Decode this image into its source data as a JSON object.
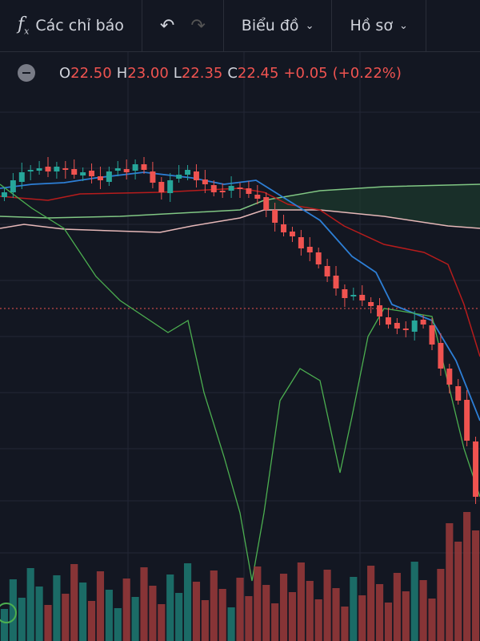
{
  "toolbar": {
    "indicators": "Các chỉ báo",
    "chart": "Biểu đồ",
    "profile": "Hồ sơ"
  },
  "legend": {
    "o_label": "O",
    "o": "22.50",
    "h_label": "H",
    "h": "23.00",
    "l_label": "L",
    "l": "22.35",
    "c_label": "C",
    "c": "22.45",
    "change": "+0.05",
    "change_pct": "(+0.22%)"
  }
}
